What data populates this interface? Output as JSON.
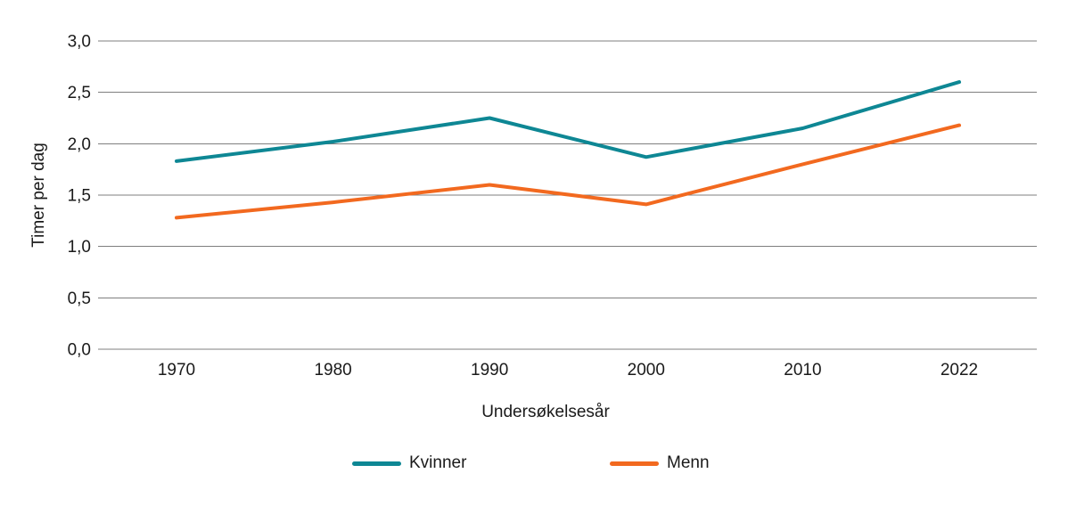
{
  "figure": {
    "background_color": "#ffffff",
    "text_color": "#1a1a1a"
  },
  "chart_data": {
    "type": "line",
    "title": "",
    "xlabel": "Undersøkelsesår",
    "ylabel": "Timer per dag",
    "categories": [
      "1970",
      "1980",
      "1990",
      "2000",
      "2010",
      "2022"
    ],
    "series": [
      {
        "name": "Kvinner",
        "color": "#0E8794",
        "values": [
          1.83,
          2.02,
          2.25,
          1.87,
          2.15,
          2.6
        ]
      },
      {
        "name": "Menn",
        "color": "#F2691F",
        "values": [
          1.28,
          1.43,
          1.6,
          1.41,
          1.8,
          2.18
        ]
      }
    ],
    "ylim": [
      0.0,
      3.0
    ],
    "ytick_step": 0.5,
    "ytick_labels": [
      "0,0",
      "0,5",
      "1,0",
      "1,5",
      "2,0",
      "2,5",
      "3,0"
    ],
    "grid": "horizontal",
    "gridline_color": "#7f7f7f",
    "line_width": 4,
    "legend_position": "bottom"
  }
}
